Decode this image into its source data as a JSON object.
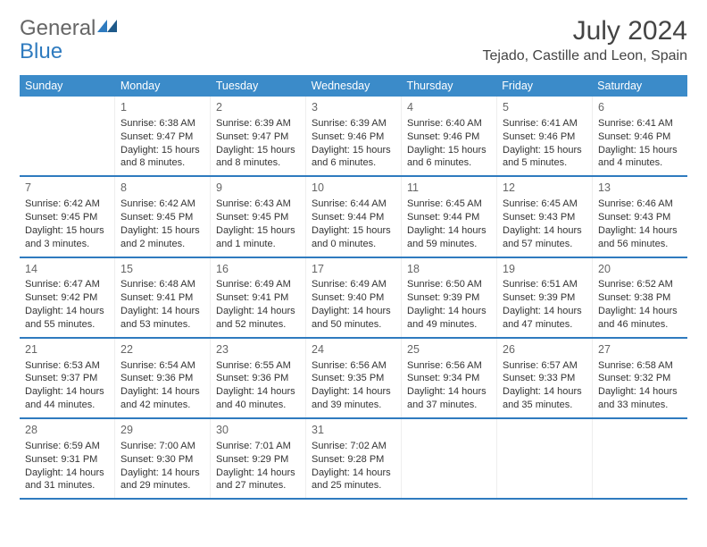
{
  "logo": {
    "text_general": "General",
    "text_blue": "Blue"
  },
  "title": {
    "month": "July 2024",
    "location": "Tejado, Castille and Leon, Spain"
  },
  "colors": {
    "header_bg": "#3b8bc9",
    "header_text": "#ffffff",
    "row_border": "#2f7bbf",
    "text": "#333333",
    "daynum": "#666666"
  },
  "day_names": [
    "Sunday",
    "Monday",
    "Tuesday",
    "Wednesday",
    "Thursday",
    "Friday",
    "Saturday"
  ],
  "weeks": [
    [
      {
        "num": "",
        "lines": []
      },
      {
        "num": "1",
        "lines": [
          "Sunrise: 6:38 AM",
          "Sunset: 9:47 PM",
          "Daylight: 15 hours and 8 minutes."
        ]
      },
      {
        "num": "2",
        "lines": [
          "Sunrise: 6:39 AM",
          "Sunset: 9:47 PM",
          "Daylight: 15 hours and 8 minutes."
        ]
      },
      {
        "num": "3",
        "lines": [
          "Sunrise: 6:39 AM",
          "Sunset: 9:46 PM",
          "Daylight: 15 hours and 6 minutes."
        ]
      },
      {
        "num": "4",
        "lines": [
          "Sunrise: 6:40 AM",
          "Sunset: 9:46 PM",
          "Daylight: 15 hours and 6 minutes."
        ]
      },
      {
        "num": "5",
        "lines": [
          "Sunrise: 6:41 AM",
          "Sunset: 9:46 PM",
          "Daylight: 15 hours and 5 minutes."
        ]
      },
      {
        "num": "6",
        "lines": [
          "Sunrise: 6:41 AM",
          "Sunset: 9:46 PM",
          "Daylight: 15 hours and 4 minutes."
        ]
      }
    ],
    [
      {
        "num": "7",
        "lines": [
          "Sunrise: 6:42 AM",
          "Sunset: 9:45 PM",
          "Daylight: 15 hours and 3 minutes."
        ]
      },
      {
        "num": "8",
        "lines": [
          "Sunrise: 6:42 AM",
          "Sunset: 9:45 PM",
          "Daylight: 15 hours and 2 minutes."
        ]
      },
      {
        "num": "9",
        "lines": [
          "Sunrise: 6:43 AM",
          "Sunset: 9:45 PM",
          "Daylight: 15 hours and 1 minute."
        ]
      },
      {
        "num": "10",
        "lines": [
          "Sunrise: 6:44 AM",
          "Sunset: 9:44 PM",
          "Daylight: 15 hours and 0 minutes."
        ]
      },
      {
        "num": "11",
        "lines": [
          "Sunrise: 6:45 AM",
          "Sunset: 9:44 PM",
          "Daylight: 14 hours and 59 minutes."
        ]
      },
      {
        "num": "12",
        "lines": [
          "Sunrise: 6:45 AM",
          "Sunset: 9:43 PM",
          "Daylight: 14 hours and 57 minutes."
        ]
      },
      {
        "num": "13",
        "lines": [
          "Sunrise: 6:46 AM",
          "Sunset: 9:43 PM",
          "Daylight: 14 hours and 56 minutes."
        ]
      }
    ],
    [
      {
        "num": "14",
        "lines": [
          "Sunrise: 6:47 AM",
          "Sunset: 9:42 PM",
          "Daylight: 14 hours and 55 minutes."
        ]
      },
      {
        "num": "15",
        "lines": [
          "Sunrise: 6:48 AM",
          "Sunset: 9:41 PM",
          "Daylight: 14 hours and 53 minutes."
        ]
      },
      {
        "num": "16",
        "lines": [
          "Sunrise: 6:49 AM",
          "Sunset: 9:41 PM",
          "Daylight: 14 hours and 52 minutes."
        ]
      },
      {
        "num": "17",
        "lines": [
          "Sunrise: 6:49 AM",
          "Sunset: 9:40 PM",
          "Daylight: 14 hours and 50 minutes."
        ]
      },
      {
        "num": "18",
        "lines": [
          "Sunrise: 6:50 AM",
          "Sunset: 9:39 PM",
          "Daylight: 14 hours and 49 minutes."
        ]
      },
      {
        "num": "19",
        "lines": [
          "Sunrise: 6:51 AM",
          "Sunset: 9:39 PM",
          "Daylight: 14 hours and 47 minutes."
        ]
      },
      {
        "num": "20",
        "lines": [
          "Sunrise: 6:52 AM",
          "Sunset: 9:38 PM",
          "Daylight: 14 hours and 46 minutes."
        ]
      }
    ],
    [
      {
        "num": "21",
        "lines": [
          "Sunrise: 6:53 AM",
          "Sunset: 9:37 PM",
          "Daylight: 14 hours and 44 minutes."
        ]
      },
      {
        "num": "22",
        "lines": [
          "Sunrise: 6:54 AM",
          "Sunset: 9:36 PM",
          "Daylight: 14 hours and 42 minutes."
        ]
      },
      {
        "num": "23",
        "lines": [
          "Sunrise: 6:55 AM",
          "Sunset: 9:36 PM",
          "Daylight: 14 hours and 40 minutes."
        ]
      },
      {
        "num": "24",
        "lines": [
          "Sunrise: 6:56 AM",
          "Sunset: 9:35 PM",
          "Daylight: 14 hours and 39 minutes."
        ]
      },
      {
        "num": "25",
        "lines": [
          "Sunrise: 6:56 AM",
          "Sunset: 9:34 PM",
          "Daylight: 14 hours and 37 minutes."
        ]
      },
      {
        "num": "26",
        "lines": [
          "Sunrise: 6:57 AM",
          "Sunset: 9:33 PM",
          "Daylight: 14 hours and 35 minutes."
        ]
      },
      {
        "num": "27",
        "lines": [
          "Sunrise: 6:58 AM",
          "Sunset: 9:32 PM",
          "Daylight: 14 hours and 33 minutes."
        ]
      }
    ],
    [
      {
        "num": "28",
        "lines": [
          "Sunrise: 6:59 AM",
          "Sunset: 9:31 PM",
          "Daylight: 14 hours and 31 minutes."
        ]
      },
      {
        "num": "29",
        "lines": [
          "Sunrise: 7:00 AM",
          "Sunset: 9:30 PM",
          "Daylight: 14 hours and 29 minutes."
        ]
      },
      {
        "num": "30",
        "lines": [
          "Sunrise: 7:01 AM",
          "Sunset: 9:29 PM",
          "Daylight: 14 hours and 27 minutes."
        ]
      },
      {
        "num": "31",
        "lines": [
          "Sunrise: 7:02 AM",
          "Sunset: 9:28 PM",
          "Daylight: 14 hours and 25 minutes."
        ]
      },
      {
        "num": "",
        "lines": []
      },
      {
        "num": "",
        "lines": []
      },
      {
        "num": "",
        "lines": []
      }
    ]
  ]
}
